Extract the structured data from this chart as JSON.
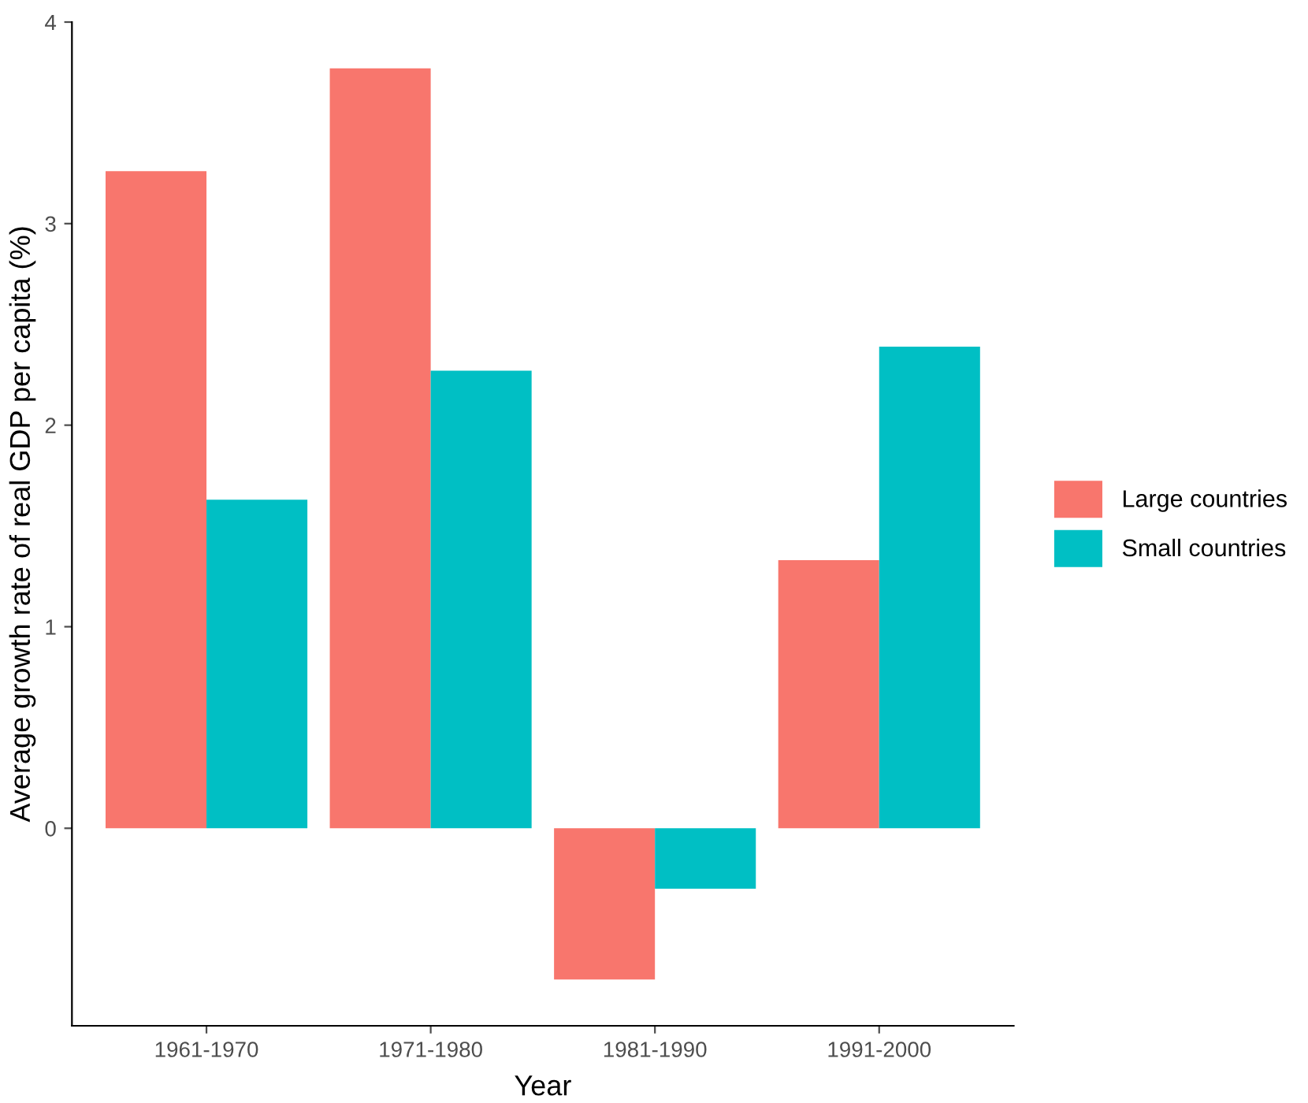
{
  "chart_data": {
    "type": "bar",
    "xlabel": "Year",
    "ylabel": "Average growth rate of real GDP per capita (%)",
    "categories": [
      "1961-1970",
      "1971-1980",
      "1981-1990",
      "1991-2000"
    ],
    "series": [
      {
        "name": "Large countries",
        "color": "#f8766d",
        "values": [
          3.26,
          3.77,
          -0.75,
          1.33
        ]
      },
      {
        "name": "Small countries",
        "color": "#00bfc4",
        "values": [
          1.63,
          2.27,
          -0.3,
          2.39
        ]
      }
    ],
    "ylim": [
      -0.98,
      4.0
    ],
    "yticks": [
      0,
      1,
      2,
      3,
      4
    ],
    "grid": false,
    "legend": "right"
  }
}
